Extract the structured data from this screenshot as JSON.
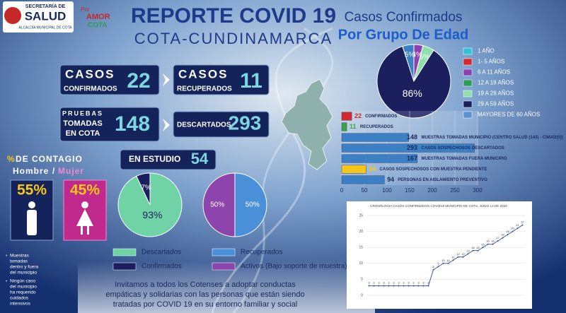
{
  "header": {
    "office_top": "SECRETARÍA DE",
    "office": "SALUD",
    "office_sub": "ALCALDÍA MUNICIPAL DE COTA",
    "slogan_pre": "Por",
    "slogan_love": "AMOR",
    "slogan_town": "COTA",
    "title": "REPORTE COVID 19",
    "subtitle": "COTA-CUNDINAMARCA"
  },
  "stats": {
    "confirmed": {
      "top": "CASOS",
      "bottom": "CONFIRMADOS",
      "value": "22"
    },
    "recovered": {
      "top": "CASOS",
      "bottom": "RECUPERADOS",
      "value": "11"
    },
    "tests": {
      "line1": "PRUEBAS",
      "line2": "TOMADAS",
      "line3": "EN COTA",
      "value": "148"
    },
    "discarded": {
      "label": "DESCARTADOS",
      "value": "293"
    },
    "studying": {
      "label": "EN ESTUDIO",
      "value": "54"
    }
  },
  "gender": {
    "percent_sign": "%",
    "title": "DE CONTAGIO",
    "men": "Hombre",
    "separator": "/",
    "women": "Mujer",
    "men_value": "55%",
    "women_value": "45%"
  },
  "notes": {
    "note1": [
      "Muestras",
      "tomadas",
      "dentro y fuera",
      "del municipio"
    ],
    "note2": [
      "Ningún caso",
      "del municipio",
      "ha requerido",
      "cuidados",
      "intensivos"
    ]
  },
  "footer": [
    "Invitamos a todos los Cotenses a adoptar conductas",
    "empáticas y solidarias con las personas que están siendo",
    "tratadas por COVID 19 en su entorno familiar y social"
  ],
  "chart_data": [
    {
      "type": "pie",
      "title": "Casos Confirmados",
      "subtitle": "Por Grupo De Edad",
      "categories": [
        "1 AÑO",
        "1- 5 AÑOS",
        "6 A 11 AÑOS",
        "12 A 18 AÑOS",
        "19 A 28 AÑOS",
        "29 A 59 AÑOS",
        "MAYORES DE 60 AÑOS"
      ],
      "values": [
        0,
        0,
        4,
        0,
        5,
        86,
        5
      ],
      "value_labels": [
        null,
        null,
        "4%",
        null,
        "5%",
        "86%",
        "5%"
      ],
      "colors": [
        "#2ec4d6",
        "#d62828",
        "#8e3fb0",
        "#2e9e57",
        "#8fe0a8",
        "#1b1f5e",
        "#3b7fc4"
      ]
    },
    {
      "type": "pie",
      "categories": [
        "Descartados",
        "Confirmados"
      ],
      "values": [
        93,
        7
      ],
      "value_labels": [
        "93%",
        "7%"
      ],
      "colors": [
        "#6fd3a6",
        "#1b1f5e"
      ]
    },
    {
      "type": "pie",
      "categories": [
        "Recuperados",
        "Activos (Bajo soporte de muestra)"
      ],
      "values": [
        50,
        50
      ],
      "value_labels": [
        "50%",
        "50%"
      ],
      "colors": [
        "#4a90d9",
        "#8e44ad"
      ]
    },
    {
      "type": "bar",
      "orientation": "horizontal",
      "categories": [
        "CONFIRMADOS",
        "RECUPERADOS",
        "MUESTRAS TOMADAS  MUNICIPIO (CENTRO SALUD (143) - CIMAD(5))",
        "CASOS SOSPECHOSOS DESCARTADOS",
        "MUESTRAS TOMADAS FUERA MUNICIPIO",
        "CASOS SOSPECHOSOS CON MUESTRA PENDIENTE",
        "PERSONAS EN AISLAMIENTO PREVENTIVO"
      ],
      "values": [
        22,
        11,
        148,
        293,
        167,
        54,
        94
      ],
      "colors": [
        "#d62828",
        "#3aa34a",
        "#3b7fc4",
        "#3b7fc4",
        "#3b7fc4",
        "#f5c518",
        "#3b7fc4"
      ],
      "xlim": [
        0,
        300
      ],
      "xticks": [
        0,
        50,
        100,
        150,
        200,
        250,
        300
      ],
      "grid": true
    },
    {
      "type": "line",
      "title": "CRONOLOGIA CASOS CONFIRMADOS COVID19 MUNICIPIO DE COTA, JUNIO 13 DE 2020",
      "categories": [
        null,
        null,
        null,
        null,
        null,
        null,
        null,
        null,
        null,
        null,
        null,
        null,
        null,
        null,
        null,
        null,
        null,
        null,
        null,
        null,
        null,
        null,
        null,
        null,
        null,
        null,
        null,
        null,
        null,
        null,
        null,
        null
      ],
      "values": [
        3,
        3,
        3,
        3,
        3,
        3,
        3,
        3,
        3,
        3,
        3,
        3,
        3,
        8,
        9,
        10,
        10,
        11,
        12,
        12,
        13,
        14,
        14,
        15,
        16,
        16,
        17,
        18,
        19,
        20,
        21,
        22
      ],
      "color": "#2f4f9f",
      "ylim": [
        0,
        25
      ],
      "yticks": [
        0,
        5,
        10,
        15,
        20,
        25
      ],
      "grid": true
    }
  ]
}
